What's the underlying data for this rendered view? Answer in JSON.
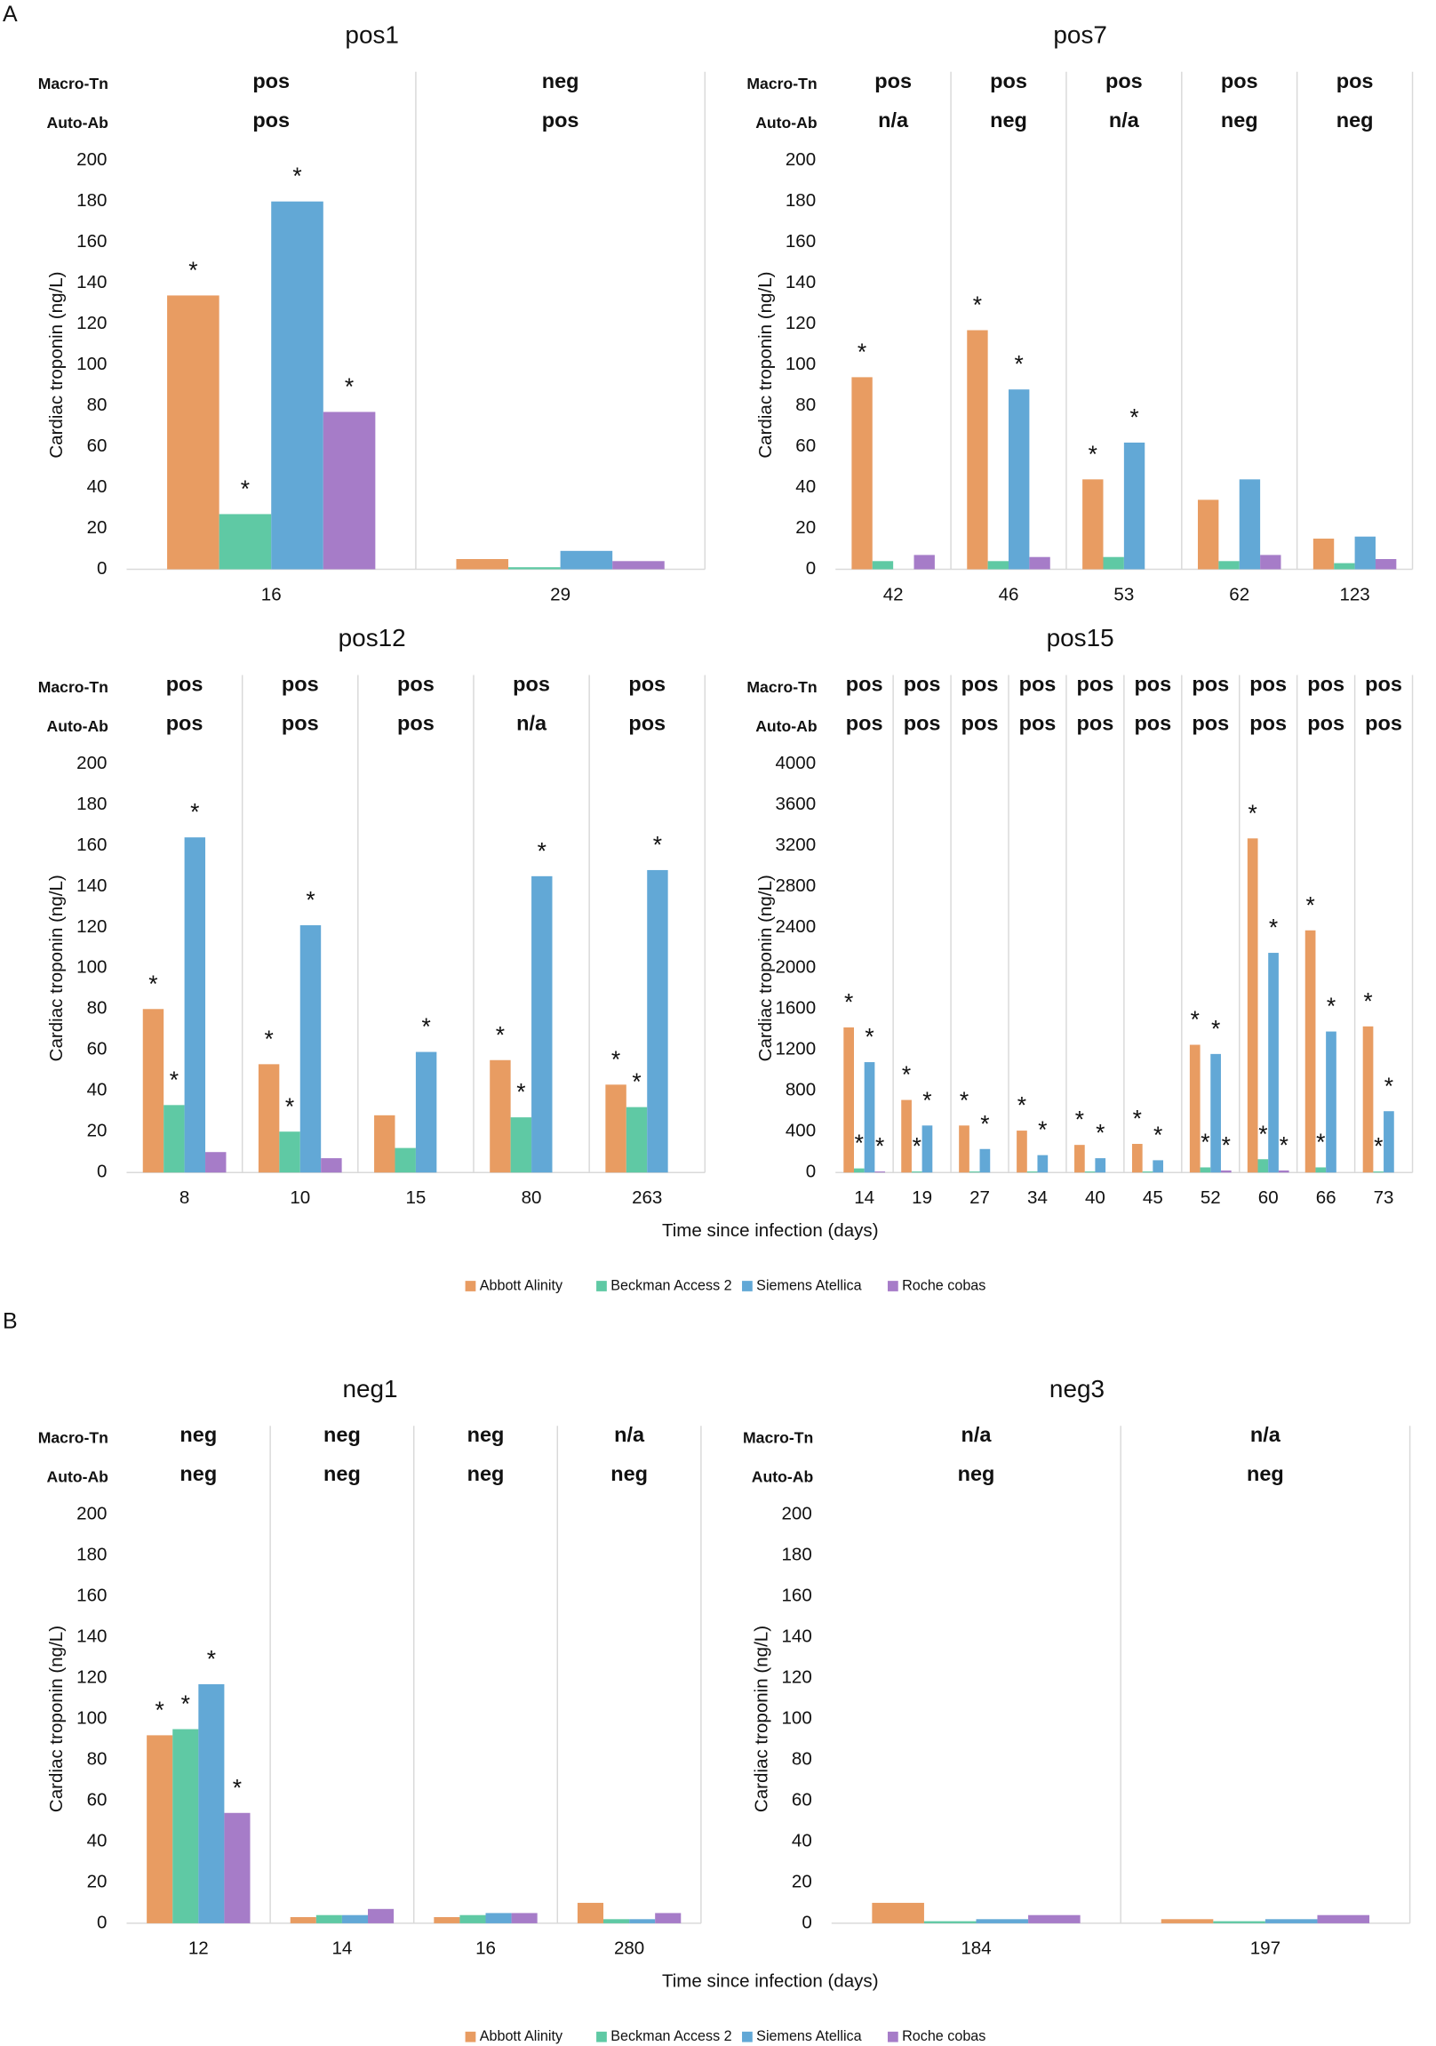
{
  "panels": [
    "A",
    "B"
  ],
  "chart_data": [
    {
      "type": "bar",
      "title": "pos1",
      "y_label": "Cardiac troponin (ng/L)",
      "row_labels": [
        "Macro-Tn",
        "Auto-Ab"
      ],
      "rows": [
        [
          "pos",
          "neg"
        ],
        [
          "pos",
          "pos"
        ]
      ],
      "categories": [
        "16",
        "29"
      ],
      "ylim": [
        0,
        200
      ],
      "yticks": [
        0,
        20,
        40,
        60,
        80,
        100,
        120,
        140,
        160,
        180,
        200
      ],
      "grid": false,
      "series": [
        {
          "name": "Abbott Alinity",
          "color": "#e89c62",
          "values": [
            134,
            5
          ],
          "markers": [
            "*",
            null
          ]
        },
        {
          "name": "Beckman Access 2",
          "color": "#5fc9a4",
          "values": [
            27,
            1
          ],
          "markers": [
            "*",
            null
          ]
        },
        {
          "name": "Siemens Atellica",
          "color": "#62a8d6",
          "values": [
            180,
            9
          ],
          "markers": [
            "*",
            null
          ]
        },
        {
          "name": "Roche cobas",
          "color": "#a67cc8",
          "values": [
            77,
            4
          ],
          "markers": [
            "*",
            null
          ]
        }
      ]
    },
    {
      "type": "bar",
      "title": "pos7",
      "y_label": "Cardiac troponin (ng/L)",
      "row_labels": [
        "Macro-Tn",
        "Auto-Ab"
      ],
      "rows": [
        [
          "pos",
          "pos",
          "pos",
          "pos",
          "pos"
        ],
        [
          "n/a",
          "neg",
          "n/a",
          "neg",
          "neg"
        ]
      ],
      "categories": [
        "42",
        "46",
        "53",
        "62",
        "123"
      ],
      "ylim": [
        0,
        200
      ],
      "yticks": [
        0,
        20,
        40,
        60,
        80,
        100,
        120,
        140,
        160,
        180,
        200
      ],
      "grid": false,
      "series": [
        {
          "name": "Abbott Alinity",
          "color": "#e89c62",
          "values": [
            94,
            117,
            44,
            34,
            15
          ],
          "markers": [
            "*",
            "*",
            "*",
            null,
            null
          ]
        },
        {
          "name": "Beckman Access 2",
          "color": "#5fc9a4",
          "values": [
            4,
            4,
            6,
            4,
            3
          ],
          "markers": [
            null,
            null,
            null,
            null,
            null
          ]
        },
        {
          "name": "Siemens Atellica",
          "color": "#62a8d6",
          "values": [
            null,
            88,
            62,
            44,
            16
          ],
          "markers": [
            null,
            "*",
            "*",
            null,
            null
          ]
        },
        {
          "name": "Roche cobas",
          "color": "#a67cc8",
          "values": [
            7,
            6,
            null,
            7,
            5
          ],
          "markers": [
            null,
            null,
            null,
            null,
            null
          ]
        }
      ]
    },
    {
      "type": "bar",
      "title": "pos12",
      "y_label": "Cardiac troponin (ng/L)",
      "row_labels": [
        "Macro-Tn",
        "Auto-Ab"
      ],
      "rows": [
        [
          "pos",
          "pos",
          "pos",
          "pos",
          "pos"
        ],
        [
          "pos",
          "pos",
          "pos",
          "n/a",
          "pos"
        ]
      ],
      "categories": [
        "8",
        "10",
        "15",
        "80",
        "263"
      ],
      "ylim": [
        0,
        200
      ],
      "yticks": [
        0,
        20,
        40,
        60,
        80,
        100,
        120,
        140,
        160,
        180,
        200
      ],
      "grid": false,
      "series": [
        {
          "name": "Abbott Alinity",
          "color": "#e89c62",
          "values": [
            80,
            53,
            28,
            55,
            43
          ],
          "markers": [
            "*",
            "*",
            null,
            "*",
            "*"
          ]
        },
        {
          "name": "Beckman Access 2",
          "color": "#5fc9a4",
          "values": [
            33,
            20,
            12,
            27,
            32
          ],
          "markers": [
            "*",
            "*",
            null,
            "*",
            "*"
          ]
        },
        {
          "name": "Siemens Atellica",
          "color": "#62a8d6",
          "values": [
            164,
            121,
            59,
            145,
            148
          ],
          "markers": [
            "*",
            "*",
            "*",
            "*",
            "*"
          ]
        },
        {
          "name": "Roche cobas",
          "color": "#a67cc8",
          "values": [
            10,
            7,
            null,
            null,
            null
          ],
          "markers": [
            null,
            null,
            null,
            null,
            null
          ]
        }
      ]
    },
    {
      "type": "bar",
      "title": "pos15",
      "y_label": "Cardiac troponin (ng/L)",
      "x_label": "Time since infection (days)",
      "legend": "bottom",
      "row_labels": [
        "Macro-Tn",
        "Auto-Ab"
      ],
      "rows": [
        [
          "pos",
          "pos",
          "pos",
          "pos",
          "pos",
          "pos",
          "pos",
          "pos",
          "pos",
          "pos"
        ],
        [
          "pos",
          "pos",
          "pos",
          "pos",
          "pos",
          "pos",
          "pos",
          "pos",
          "pos",
          "pos"
        ]
      ],
      "categories": [
        "14",
        "19",
        "27",
        "34",
        "40",
        "45",
        "52",
        "60",
        "66",
        "73"
      ],
      "ylim": [
        0,
        4000
      ],
      "yticks": [
        0,
        400,
        800,
        1200,
        1600,
        2000,
        2400,
        2800,
        3200,
        3600,
        4000
      ],
      "grid": false,
      "series": [
        {
          "name": "Abbott Alinity",
          "color": "#e89c62",
          "values": [
            1420,
            710,
            460,
            410,
            270,
            280,
            1250,
            3270,
            2370,
            1430
          ],
          "markers": [
            "*",
            "*",
            "*",
            "*",
            "*",
            "*",
            "*",
            "*",
            "*",
            "*"
          ]
        },
        {
          "name": "Beckman Access 2",
          "color": "#5fc9a4",
          "values": [
            40,
            10,
            10,
            10,
            10,
            10,
            50,
            130,
            50,
            10
          ],
          "markers": [
            "*",
            "*",
            null,
            null,
            null,
            null,
            "*",
            "*",
            "*",
            "*"
          ]
        },
        {
          "name": "Siemens Atellica",
          "color": "#62a8d6",
          "values": [
            1080,
            460,
            230,
            170,
            140,
            120,
            1160,
            2150,
            1380,
            600
          ],
          "markers": [
            "*",
            "*",
            "*",
            "*",
            "*",
            "*",
            "*",
            "*",
            "*",
            "*"
          ]
        },
        {
          "name": "Roche cobas",
          "color": "#a67cc8",
          "values": [
            10,
            null,
            null,
            null,
            null,
            null,
            20,
            20,
            null,
            null
          ],
          "markers": [
            "*",
            null,
            null,
            null,
            null,
            null,
            "*",
            "*",
            null,
            null
          ]
        }
      ]
    },
    {
      "type": "bar",
      "title": "neg1",
      "y_label": "Cardiac troponin (ng/L)",
      "x_label": "Time since infection (days)",
      "row_labels": [
        "Macro-Tn",
        "Auto-Ab"
      ],
      "rows": [
        [
          "neg",
          "neg",
          "neg",
          "n/a"
        ],
        [
          "neg",
          "neg",
          "neg",
          "neg"
        ]
      ],
      "categories": [
        "12",
        "14",
        "16",
        "280"
      ],
      "ylim": [
        0,
        200
      ],
      "yticks": [
        0,
        20,
        40,
        60,
        80,
        100,
        120,
        140,
        160,
        180,
        200
      ],
      "grid": false,
      "series": [
        {
          "name": "Abbott Alinity",
          "color": "#e89c62",
          "values": [
            92,
            3,
            3,
            10
          ],
          "markers": [
            "*",
            null,
            null,
            null
          ]
        },
        {
          "name": "Beckman Access 2",
          "color": "#5fc9a4",
          "values": [
            95,
            4,
            4,
            2
          ],
          "markers": [
            "*",
            null,
            null,
            null
          ]
        },
        {
          "name": "Siemens Atellica",
          "color": "#62a8d6",
          "values": [
            117,
            4,
            5,
            2
          ],
          "markers": [
            "*",
            null,
            null,
            null
          ]
        },
        {
          "name": "Roche cobas",
          "color": "#a67cc8",
          "values": [
            54,
            7,
            5,
            5
          ],
          "markers": [
            "*",
            null,
            null,
            null
          ]
        }
      ]
    },
    {
      "type": "bar",
      "title": "neg3",
      "y_label": "Cardiac troponin (ng/L)",
      "legend": "bottom",
      "row_labels": [
        "Macro-Tn",
        "Auto-Ab"
      ],
      "rows": [
        [
          "n/a",
          "n/a"
        ],
        [
          "neg",
          "neg"
        ]
      ],
      "categories": [
        "184",
        "197"
      ],
      "ylim": [
        0,
        200
      ],
      "yticks": [
        0,
        20,
        40,
        60,
        80,
        100,
        120,
        140,
        160,
        180,
        200
      ],
      "grid": false,
      "series": [
        {
          "name": "Abbott Alinity",
          "color": "#e89c62",
          "values": [
            10,
            2
          ],
          "markers": [
            null,
            null
          ]
        },
        {
          "name": "Beckman Access 2",
          "color": "#5fc9a4",
          "values": [
            1,
            1
          ],
          "markers": [
            null,
            null
          ]
        },
        {
          "name": "Siemens Atellica",
          "color": "#62a8d6",
          "values": [
            2,
            2
          ],
          "markers": [
            null,
            null
          ]
        },
        {
          "name": "Roche cobas",
          "color": "#a67cc8",
          "values": [
            4,
            4
          ],
          "markers": [
            null,
            null
          ]
        }
      ]
    }
  ]
}
